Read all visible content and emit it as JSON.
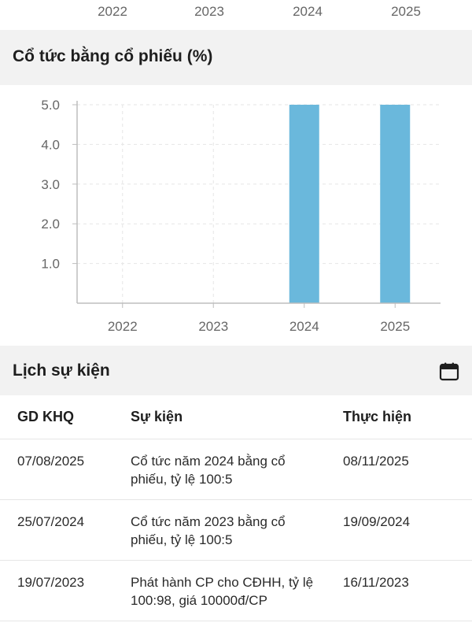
{
  "top_axis_ticks": [
    "2022",
    "2023",
    "2024",
    "2025"
  ],
  "dividend_section": {
    "title": "Cổ tức bằng cổ phiếu (%)"
  },
  "chart_data": {
    "type": "bar",
    "categories": [
      "2022",
      "2023",
      "2024",
      "2025"
    ],
    "values": [
      0,
      0,
      5.0,
      5.0
    ],
    "title": "Cổ tức bằng cổ phiếu (%)",
    "xlabel": "",
    "ylabel": "",
    "ylim": [
      0,
      5.0
    ],
    "yticks": [
      "1.0",
      "2.0",
      "3.0",
      "4.0",
      "5.0"
    ],
    "bar_color": "#6ab8dc",
    "grid": true
  },
  "events_section": {
    "title": "Lịch sự kiện",
    "calendar_icon": "calendar-icon",
    "columns": [
      "GD KHQ",
      "Sự kiện",
      "Thực hiện"
    ],
    "rows": [
      {
        "date": "07/08/2025",
        "event": "Cổ tức năm 2024 bằng cổ phiếu, tỷ lệ 100:5",
        "done": "08/11/2025"
      },
      {
        "date": "25/07/2024",
        "event": "Cổ tức năm 2023 bằng cổ phiếu, tỷ lệ 100:5",
        "done": "19/09/2024"
      },
      {
        "date": "19/07/2023",
        "event": "Phát hành CP cho CĐHH, tỷ lệ 100:98, giá 10000đ/CP",
        "done": "16/11/2023"
      }
    ]
  }
}
